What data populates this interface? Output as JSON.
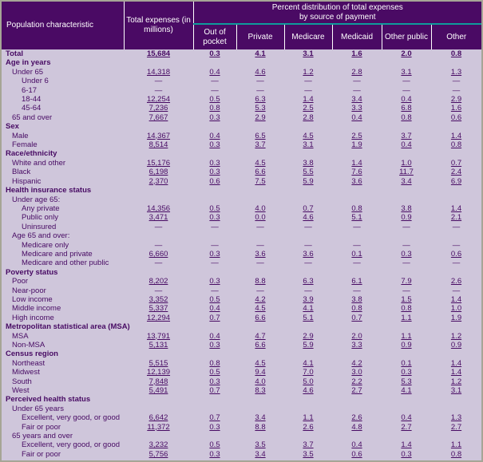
{
  "colors": {
    "header_bg": "#4a0a64",
    "header_text": "#ffffff",
    "body_bg": "#cfc6db",
    "text": "#470a63",
    "accent_rule": "#0f9b9b",
    "frame": "#a6a596"
  },
  "chart_data": {
    "type": "table",
    "title": "Percent distribution of total expenses by source of payment",
    "missing_marker": "—",
    "header": {
      "row_label_header": "Population characteristic",
      "total_header": "Total expenses (in millions)",
      "span_header_line1": "Percent distribution of total expenses",
      "span_header_line2": "by source of payment",
      "payment_columns": [
        "Out of pocket",
        "Private",
        "Medicare",
        "Medicaid",
        "Other public",
        "Other"
      ]
    },
    "columns": [
      "Population characteristic",
      "Total expenses (in millions)",
      "Out of pocket",
      "Private",
      "Medicare",
      "Medicaid",
      "Other public",
      "Other"
    ],
    "rows": [
      {
        "label": "Total",
        "bold": true,
        "indent": 0,
        "values": [
          "15,684",
          "0.3",
          "4.1",
          "3.1",
          "1.6",
          "2.0",
          "0.8"
        ]
      },
      {
        "label": "Age in years",
        "bold": true,
        "indent": 0,
        "values": null
      },
      {
        "label": "Under 65",
        "indent": 1,
        "values": [
          "14,318",
          "0.4",
          "4.6",
          "1.2",
          "2.8",
          "3.1",
          "1.3"
        ]
      },
      {
        "label": "Under 6",
        "indent": 2,
        "values": [
          "—",
          "—",
          "—",
          "—",
          "—",
          "—",
          "—"
        ]
      },
      {
        "label": "6-17",
        "indent": 2,
        "values": [
          "—",
          "—",
          "—",
          "—",
          "—",
          "—",
          "—"
        ]
      },
      {
        "label": "18-44",
        "indent": 2,
        "values": [
          "12,254",
          "0.5",
          "6.3",
          "1.4",
          "3.4",
          "0.4",
          "2.9"
        ]
      },
      {
        "label": "45-64",
        "indent": 2,
        "values": [
          "7,236",
          "0.8",
          "5.3",
          "2.5",
          "3.3",
          "6.8",
          "1.6"
        ]
      },
      {
        "label": "65 and over",
        "indent": 1,
        "values": [
          "7,667",
          "0.3",
          "2.9",
          "2.8",
          "0.4",
          "0.8",
          "0.6"
        ]
      },
      {
        "label": "Sex",
        "bold": true,
        "indent": 0,
        "values": null
      },
      {
        "label": "Male",
        "indent": 1,
        "values": [
          "14,367",
          "0.4",
          "6.5",
          "4.5",
          "2.5",
          "3.7",
          "1.4"
        ]
      },
      {
        "label": "Female",
        "indent": 1,
        "values": [
          "8,514",
          "0.3",
          "3.7",
          "3.1",
          "1.9",
          "0.4",
          "0.8"
        ]
      },
      {
        "label": "Race/ethnicity",
        "bold": true,
        "indent": 0,
        "values": null
      },
      {
        "label": "White and other",
        "indent": 1,
        "values": [
          "15,176",
          "0.3",
          "4.5",
          "3.8",
          "1.4",
          "1.0",
          "0.7"
        ]
      },
      {
        "label": "Black",
        "indent": 1,
        "values": [
          "6,198",
          "0.3",
          "6.6",
          "5.5",
          "7.6",
          "11.7",
          "2.4"
        ]
      },
      {
        "label": "Hispanic",
        "indent": 1,
        "values": [
          "2,370",
          "0.6",
          "7.5",
          "5.9",
          "3.6",
          "3.4",
          "6.9"
        ]
      },
      {
        "label": "Health insurance status",
        "bold": true,
        "indent": 0,
        "values": null
      },
      {
        "label": "Under age 65:",
        "indent": 1,
        "values": null
      },
      {
        "label": "Any private",
        "indent": 2,
        "values": [
          "14,356",
          "0.5",
          "4.0",
          "0.7",
          "0.8",
          "3.8",
          "1.4"
        ]
      },
      {
        "label": "Public only",
        "indent": 2,
        "values": [
          "3,471",
          "0.3",
          "0.0",
          "4.6",
          "5.1",
          "0.9",
          "2.1"
        ]
      },
      {
        "label": "Uninsured",
        "indent": 2,
        "values": [
          "—",
          "—",
          "—",
          "—",
          "—",
          "—",
          "—"
        ]
      },
      {
        "label": "Age 65 and over:",
        "indent": 1,
        "values": null
      },
      {
        "label": "Medicare only",
        "indent": 2,
        "values": [
          "—",
          "—",
          "—",
          "—",
          "—",
          "—",
          "—"
        ]
      },
      {
        "label": "Medicare and private",
        "indent": 2,
        "values": [
          "6,660",
          "0.3",
          "3.6",
          "3.6",
          "0.1",
          "0.3",
          "0.6"
        ]
      },
      {
        "label": "Medicare and other public",
        "indent": 2,
        "values": [
          "—",
          "—",
          "—",
          "—",
          "—",
          "—",
          "—"
        ]
      },
      {
        "label": "Poverty status",
        "bold": true,
        "indent": 0,
        "values": null
      },
      {
        "label": "Poor",
        "indent": 1,
        "values": [
          "8,202",
          "0.3",
          "8.8",
          "6.3",
          "6.1",
          "7.9",
          "2.6"
        ]
      },
      {
        "label": "Near-poor",
        "indent": 1,
        "values": [
          "—",
          "—",
          "—",
          "—",
          "—",
          "—",
          "—"
        ]
      },
      {
        "label": "Low income",
        "indent": 1,
        "values": [
          "3,352",
          "0.5",
          "4.2",
          "3.9",
          "3.8",
          "1.5",
          "1.4"
        ]
      },
      {
        "label": "Middle income",
        "indent": 1,
        "values": [
          "5,337",
          "0.4",
          "4.5",
          "4.1",
          "0.8",
          "0.8",
          "1.0"
        ]
      },
      {
        "label": "High income",
        "indent": 1,
        "values": [
          "12,294",
          "0.7",
          "6.6",
          "5.1",
          "0.7",
          "1.1",
          "1.9"
        ]
      },
      {
        "label": "Metropolitan statistical area (MSA)",
        "bold": true,
        "indent": 0,
        "values": null
      },
      {
        "label": "MSA",
        "indent": 1,
        "values": [
          "13,791",
          "0.4",
          "4.7",
          "2.9",
          "2.0",
          "1.1",
          "1.2"
        ]
      },
      {
        "label": "Non-MSA",
        "indent": 1,
        "values": [
          "5,131",
          "0.3",
          "6.6",
          "5.9",
          "3.3",
          "0.9",
          "0.9"
        ]
      },
      {
        "label": "Census region",
        "bold": true,
        "indent": 0,
        "values": null
      },
      {
        "label": "Northeast",
        "indent": 1,
        "values": [
          "5,515",
          "0.8",
          "4.5",
          "4.1",
          "4.2",
          "0.1",
          "1.4"
        ]
      },
      {
        "label": "Midwest",
        "indent": 1,
        "values": [
          "12,139",
          "0.5",
          "9.4",
          "7.0",
          "3.0",
          "0.3",
          "1.4"
        ]
      },
      {
        "label": "South",
        "indent": 1,
        "values": [
          "7,848",
          "0.3",
          "4.0",
          "5.0",
          "2.2",
          "5.3",
          "1.2"
        ]
      },
      {
        "label": "West",
        "indent": 1,
        "values": [
          "5,491",
          "0.7",
          "8.3",
          "4.6",
          "2.7",
          "4.1",
          "3.1"
        ]
      },
      {
        "label": "Perceived health status",
        "bold": true,
        "indent": 0,
        "values": null
      },
      {
        "label": "Under 65 years",
        "indent": 1,
        "values": null
      },
      {
        "label": "Excellent, very good, or good",
        "indent": 2,
        "values": [
          "6,642",
          "0.7",
          "3.4",
          "1.1",
          "2.6",
          "0.4",
          "1.3"
        ]
      },
      {
        "label": "Fair or poor",
        "indent": 2,
        "values": [
          "11,372",
          "0.3",
          "8.8",
          "2.6",
          "4.8",
          "2.7",
          "2.7"
        ]
      },
      {
        "label": "65 years and over",
        "indent": 1,
        "values": null
      },
      {
        "label": "Excellent, very good, or good",
        "indent": 2,
        "values": [
          "3,232",
          "0.5",
          "3.5",
          "3.7",
          "0.4",
          "1.4",
          "1.1"
        ]
      },
      {
        "label": "Fair or poor",
        "indent": 2,
        "values": [
          "5,756",
          "0.3",
          "3.4",
          "3.5",
          "0.6",
          "0.3",
          "0.8"
        ]
      }
    ]
  }
}
